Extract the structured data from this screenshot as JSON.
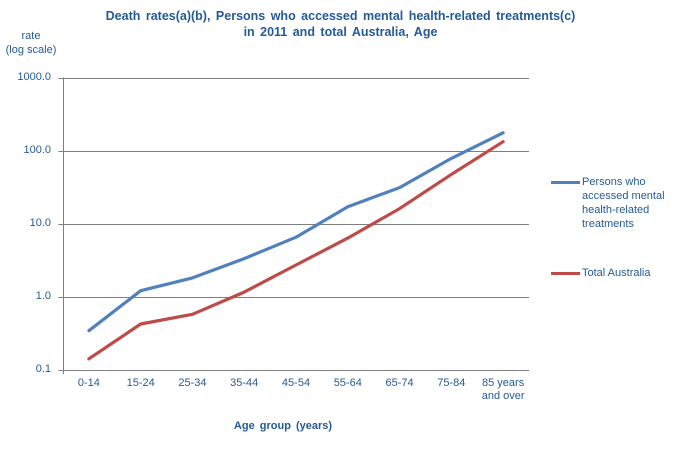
{
  "title": {
    "line1": "Death rates(a)(b), Persons who accessed mental health-related treatments(c)",
    "line2": "in 2011 and total Australia, Age"
  },
  "y_axis": {
    "label_line1": "rate",
    "label_line2": "(log scale)",
    "tick_labels": [
      "1000.0",
      "100.0",
      "10.0",
      "1.0",
      "0.1"
    ]
  },
  "x_axis": {
    "title": "Age group (years)"
  },
  "colors": {
    "text": "#245B96",
    "grid": "#7F7F7F",
    "series_blue": "#4F81BD",
    "series_red": "#BE4B48"
  },
  "chart_data": {
    "type": "line",
    "title": "Death rates(a)(b), Persons who accessed mental health-related treatments(c) in 2011 and total Australia, Age",
    "xlabel": "Age group (years)",
    "ylabel": "rate (log scale)",
    "yscale": "log",
    "ylim": [
      0.1,
      1000
    ],
    "yticks": [
      1000,
      100,
      10,
      1,
      0.1
    ],
    "grid": "horizontal",
    "legend_position": "right",
    "categories": [
      "0-14",
      "15-24",
      "25-34",
      "35-44",
      "45-54",
      "55-64",
      "65-74",
      "75-84",
      "85 years and over"
    ],
    "series": [
      {
        "name": "Persons who accessed mental health-related treatments",
        "color": "#4F81BD",
        "values": [
          0.34,
          1.2,
          1.8,
          3.3,
          6.5,
          17,
          31,
          78,
          175
        ]
      },
      {
        "name": "Total Australia",
        "color": "#BE4B48",
        "values": [
          0.14,
          0.42,
          0.57,
          1.15,
          2.7,
          6.3,
          16,
          47,
          132
        ]
      }
    ]
  }
}
